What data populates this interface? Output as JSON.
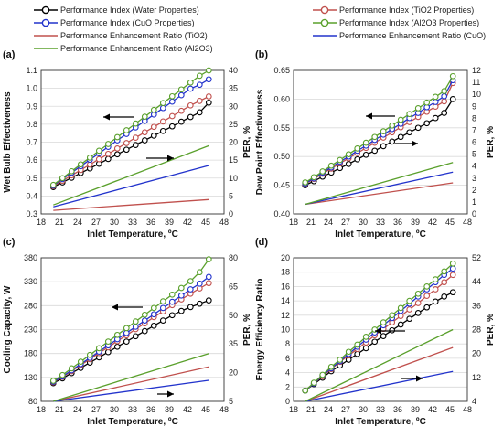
{
  "legend": [
    {
      "label": "Performance Index (Water Properties)",
      "color": "#000000",
      "marker": true
    },
    {
      "label": "Performance Index  (TiO2 Properties)",
      "color": "#c0504d",
      "marker": true
    },
    {
      "label": "Performance Index (CuO Properties)",
      "color": "#2233cc",
      "marker": true
    },
    {
      "label": "Performance Index (Al2O3 Properties)",
      "color": "#5aa02c",
      "marker": true
    },
    {
      "label": "Performance Enhancement Ratio (TiO2)",
      "color": "#c0504d",
      "marker": false
    },
    {
      "label": "Performance Enhancement Ratio (CuO)",
      "color": "#2233cc",
      "marker": false
    },
    {
      "label": "Performance Enhancement Ratio (Al2O3)",
      "color": "#5aa02c",
      "marker": false
    }
  ],
  "chart_data": [
    {
      "panel": "(a)",
      "type": "line",
      "xlabel": "Inlet Temperature, ºC",
      "ylabel": "Wet Bulb Effectiveness",
      "y2label": "PER, %",
      "xlim": [
        18,
        48
      ],
      "xticks": [
        "18",
        "21",
        "24",
        "27",
        "30",
        "33",
        "36",
        "39",
        "42",
        "45",
        "48"
      ],
      "ylim": [
        0.3,
        1.1
      ],
      "yticks": [
        "0.3",
        "0.4",
        "0.5",
        "0.6",
        "0.7",
        "0.8",
        "0.9",
        "1.0",
        "1.1"
      ],
      "y2lim": [
        0,
        40
      ],
      "y2ticks": [
        "0",
        "5",
        "10",
        "15",
        "20",
        "25",
        "30",
        "35",
        "40"
      ],
      "x": [
        20,
        21.5,
        23,
        24.5,
        26,
        27.5,
        29,
        30.5,
        32,
        33.5,
        35,
        36.5,
        38,
        39.5,
        41,
        42.5,
        44,
        45.5
      ],
      "series": [
        {
          "name": "Performance Index (Water Properties)",
          "axis": "left",
          "values": [
            0.45,
            0.476,
            0.502,
            0.528,
            0.554,
            0.58,
            0.606,
            0.632,
            0.658,
            0.684,
            0.71,
            0.736,
            0.762,
            0.788,
            0.814,
            0.84,
            0.866,
            0.92
          ]
        },
        {
          "name": "Performance Index  (TiO2 Properties)",
          "axis": "left",
          "values": [
            0.455,
            0.485,
            0.515,
            0.545,
            0.575,
            0.605,
            0.635,
            0.665,
            0.695,
            0.725,
            0.755,
            0.785,
            0.815,
            0.845,
            0.875,
            0.905,
            0.93,
            0.955
          ]
        },
        {
          "name": "Performance Index (CuO Properties)",
          "axis": "left",
          "values": [
            0.458,
            0.494,
            0.53,
            0.566,
            0.602,
            0.638,
            0.674,
            0.71,
            0.746,
            0.782,
            0.818,
            0.854,
            0.89,
            0.926,
            0.962,
            0.998,
            1.02,
            1.05
          ]
        },
        {
          "name": "Performance Index (Al2O3 Properties)",
          "axis": "left",
          "values": [
            0.462,
            0.5,
            0.538,
            0.576,
            0.614,
            0.652,
            0.69,
            0.728,
            0.766,
            0.804,
            0.842,
            0.88,
            0.918,
            0.956,
            0.994,
            1.032,
            1.07,
            1.1
          ]
        },
        {
          "name": "Performance Enhancement Ratio (TiO2)",
          "axis": "right",
          "line_only": true,
          "x": [
            20,
            45.5
          ],
          "values": [
            1,
            4
          ]
        },
        {
          "name": "Performance Enhancement Ratio (CuO)",
          "axis": "right",
          "line_only": true,
          "x": [
            20,
            45.5
          ],
          "values": [
            2,
            13.5
          ]
        },
        {
          "name": "Performance Enhancement Ratio (Al2O3)",
          "axis": "right",
          "line_only": true,
          "x": [
            20,
            45.5
          ],
          "values": [
            2.5,
            19
          ]
        }
      ]
    },
    {
      "panel": "(b)",
      "type": "line",
      "xlabel": "Inlet Temperature, ºC",
      "ylabel": "Dew Point Effectiveness",
      "y2label": "PER, %",
      "xlim": [
        18,
        48
      ],
      "xticks": [
        "18",
        "21",
        "24",
        "27",
        "30",
        "33",
        "36",
        "39",
        "42",
        "45",
        "48"
      ],
      "ylim": [
        0.4,
        0.65
      ],
      "yticks": [
        "0.40",
        "0.45",
        "0.50",
        "0.55",
        "0.60",
        "0.65"
      ],
      "y2lim": [
        0,
        12
      ],
      "y2ticks": [
        "0",
        "1",
        "2",
        "3",
        "4",
        "5",
        "6",
        "7",
        "8",
        "9",
        "10",
        "11",
        "12"
      ],
      "x": [
        20,
        21.5,
        23,
        24.5,
        26,
        27.5,
        29,
        30.5,
        32,
        33.5,
        35,
        36.5,
        38,
        39.5,
        41,
        42.5,
        44,
        45.5
      ],
      "series": [
        {
          "name": "Performance Index (Water Properties)",
          "axis": "left",
          "values": [
            0.45,
            0.457,
            0.465,
            0.472,
            0.48,
            0.487,
            0.495,
            0.503,
            0.51,
            0.518,
            0.526,
            0.534,
            0.542,
            0.55,
            0.558,
            0.567,
            0.576,
            0.6
          ]
        },
        {
          "name": "Performance Index  (TiO2 Properties)",
          "axis": "left",
          "values": [
            0.452,
            0.461,
            0.47,
            0.479,
            0.488,
            0.497,
            0.506,
            0.515,
            0.524,
            0.533,
            0.542,
            0.551,
            0.56,
            0.569,
            0.578,
            0.587,
            0.596,
            0.628
          ]
        },
        {
          "name": "Performance Index (CuO Properties)",
          "axis": "left",
          "values": [
            0.453,
            0.462,
            0.472,
            0.481,
            0.491,
            0.5,
            0.51,
            0.519,
            0.529,
            0.538,
            0.548,
            0.557,
            0.567,
            0.576,
            0.586,
            0.595,
            0.605,
            0.633
          ]
        },
        {
          "name": "Performance Index (Al2O3 Properties)",
          "axis": "left",
          "values": [
            0.455,
            0.464,
            0.474,
            0.484,
            0.494,
            0.504,
            0.514,
            0.524,
            0.534,
            0.544,
            0.554,
            0.564,
            0.574,
            0.584,
            0.594,
            0.604,
            0.614,
            0.64
          ]
        },
        {
          "name": "Performance Enhancement Ratio (TiO2)",
          "axis": "right",
          "line_only": true,
          "x": [
            20,
            45.5
          ],
          "values": [
            0.8,
            2.6
          ]
        },
        {
          "name": "Performance Enhancement Ratio (CuO)",
          "axis": "right",
          "line_only": true,
          "x": [
            20,
            45.5
          ],
          "values": [
            0.8,
            3.5
          ]
        },
        {
          "name": "Performance Enhancement Ratio (Al2O3)",
          "axis": "right",
          "line_only": true,
          "x": [
            20,
            45.5
          ],
          "values": [
            0.8,
            4.3
          ]
        }
      ]
    },
    {
      "panel": "(c)",
      "type": "line",
      "xlabel": "Inlet Temperature, ºC",
      "ylabel": "Cooling Capacity, W",
      "y2label": "PER, %",
      "xlim": [
        18,
        48
      ],
      "xticks": [
        "18",
        "21",
        "24",
        "27",
        "30",
        "33",
        "36",
        "39",
        "42",
        "45",
        "48"
      ],
      "ylim": [
        80,
        380
      ],
      "yticks": [
        "80",
        "130",
        "180",
        "230",
        "280",
        "330",
        "380"
      ],
      "y2lim": [
        5,
        80
      ],
      "y2ticks": [
        "5",
        "20",
        "35",
        "50",
        "65",
        "80"
      ],
      "x": [
        20,
        21.5,
        23,
        24.5,
        26,
        27.5,
        29,
        30.5,
        32,
        33.5,
        35,
        36.5,
        38,
        39.5,
        41,
        42.5,
        44,
        45.5
      ],
      "series": [
        {
          "name": "Performance Index (Water Properties)",
          "axis": "left",
          "values": [
            118,
            128,
            139,
            150,
            161,
            172,
            183,
            194,
            205,
            216,
            227,
            238,
            249,
            260,
            269,
            277,
            284,
            291
          ]
        },
        {
          "name": "Performance Index  (TiO2 Properties)",
          "axis": "left",
          "values": [
            120,
            131,
            143,
            156,
            168,
            181,
            193,
            206,
            218,
            231,
            243,
            256,
            268,
            281,
            293,
            305,
            316,
            327
          ]
        },
        {
          "name": "Performance Index (CuO Properties)",
          "axis": "left",
          "values": [
            121,
            132,
            145,
            158,
            171,
            184,
            197,
            210,
            223,
            236,
            249,
            262,
            275,
            288,
            301,
            314,
            326,
            340
          ]
        },
        {
          "name": "Performance Index (Al2O3 Properties)",
          "axis": "left",
          "values": [
            123,
            135,
            149,
            163,
            177,
            191,
            205,
            219,
            233,
            247,
            261,
            275,
            289,
            303,
            317,
            331,
            350,
            377
          ]
        },
        {
          "name": "Performance Enhancement Ratio (TiO2)",
          "axis": "right",
          "line_only": true,
          "x": [
            20,
            45.5
          ],
          "values": [
            5,
            23
          ]
        },
        {
          "name": "Performance Enhancement Ratio (CuO)",
          "axis": "right",
          "line_only": true,
          "x": [
            20,
            45.5
          ],
          "values": [
            5,
            16
          ]
        },
        {
          "name": "Performance Enhancement Ratio (Al2O3)",
          "axis": "right",
          "line_only": true,
          "x": [
            20,
            45.5
          ],
          "values": [
            5,
            30
          ]
        }
      ]
    },
    {
      "panel": "(d)",
      "type": "line",
      "xlabel": "Inlet Temperature, ºC",
      "ylabel": "Energy Efficiency Ratio",
      "y2label": "PER, %",
      "xlim": [
        18,
        48
      ],
      "xticks": [
        "18",
        "21",
        "24",
        "27",
        "30",
        "33",
        "36",
        "39",
        "42",
        "45",
        "48"
      ],
      "ylim": [
        0,
        20
      ],
      "yticks": [
        "0",
        "2",
        "4",
        "6",
        "8",
        "10",
        "12",
        "14",
        "16",
        "18",
        "20"
      ],
      "y2lim": [
        4,
        52
      ],
      "y2ticks": [
        "4",
        "12",
        "20",
        "28",
        "36",
        "44",
        "52"
      ],
      "x": [
        20,
        21.5,
        23,
        24.5,
        26,
        27.5,
        29,
        30.5,
        32,
        33.5,
        35,
        36.5,
        38,
        39.5,
        41,
        42.5,
        44,
        45.5
      ],
      "series": [
        {
          "name": "Performance Index (Water Properties)",
          "axis": "left",
          "values": [
            1.5,
            2.4,
            3.3,
            4.2,
            5.0,
            5.8,
            6.6,
            7.4,
            8.3,
            9.1,
            9.9,
            10.7,
            11.5,
            12.3,
            13.1,
            13.9,
            14.6,
            15.2
          ]
        },
        {
          "name": "Performance Index  (TiO2 Properties)",
          "axis": "left",
          "values": [
            1.5,
            2.5,
            3.5,
            4.5,
            5.5,
            6.4,
            7.3,
            8.2,
            9.2,
            10.1,
            11.0,
            11.9,
            12.8,
            13.7,
            14.7,
            15.6,
            16.6,
            17.6
          ]
        },
        {
          "name": "Performance Index (CuO Properties)",
          "axis": "left",
          "values": [
            1.5,
            2.5,
            3.6,
            4.6,
            5.6,
            6.6,
            7.6,
            8.6,
            9.6,
            10.6,
            11.6,
            12.6,
            13.6,
            14.6,
            15.6,
            16.6,
            17.6,
            18.5
          ]
        },
        {
          "name": "Performance Index (Al2O3 Properties)",
          "axis": "left",
          "values": [
            1.5,
            2.6,
            3.7,
            4.8,
            5.8,
            6.9,
            7.9,
            9.0,
            10.0,
            11.0,
            12.0,
            13.0,
            14.0,
            15.0,
            16.0,
            17.0,
            18.1,
            19.2
          ]
        },
        {
          "name": "Performance Enhancement Ratio (TiO2)",
          "axis": "right",
          "line_only": true,
          "x": [
            20,
            45.5
          ],
          "values": [
            4,
            22
          ]
        },
        {
          "name": "Performance Enhancement Ratio (CuO)",
          "axis": "right",
          "line_only": true,
          "x": [
            20,
            45.5
          ],
          "values": [
            4,
            14
          ]
        },
        {
          "name": "Performance Enhancement Ratio (Al2O3)",
          "axis": "right",
          "line_only": true,
          "x": [
            20,
            45.5
          ],
          "values": [
            4,
            28
          ]
        }
      ]
    }
  ]
}
